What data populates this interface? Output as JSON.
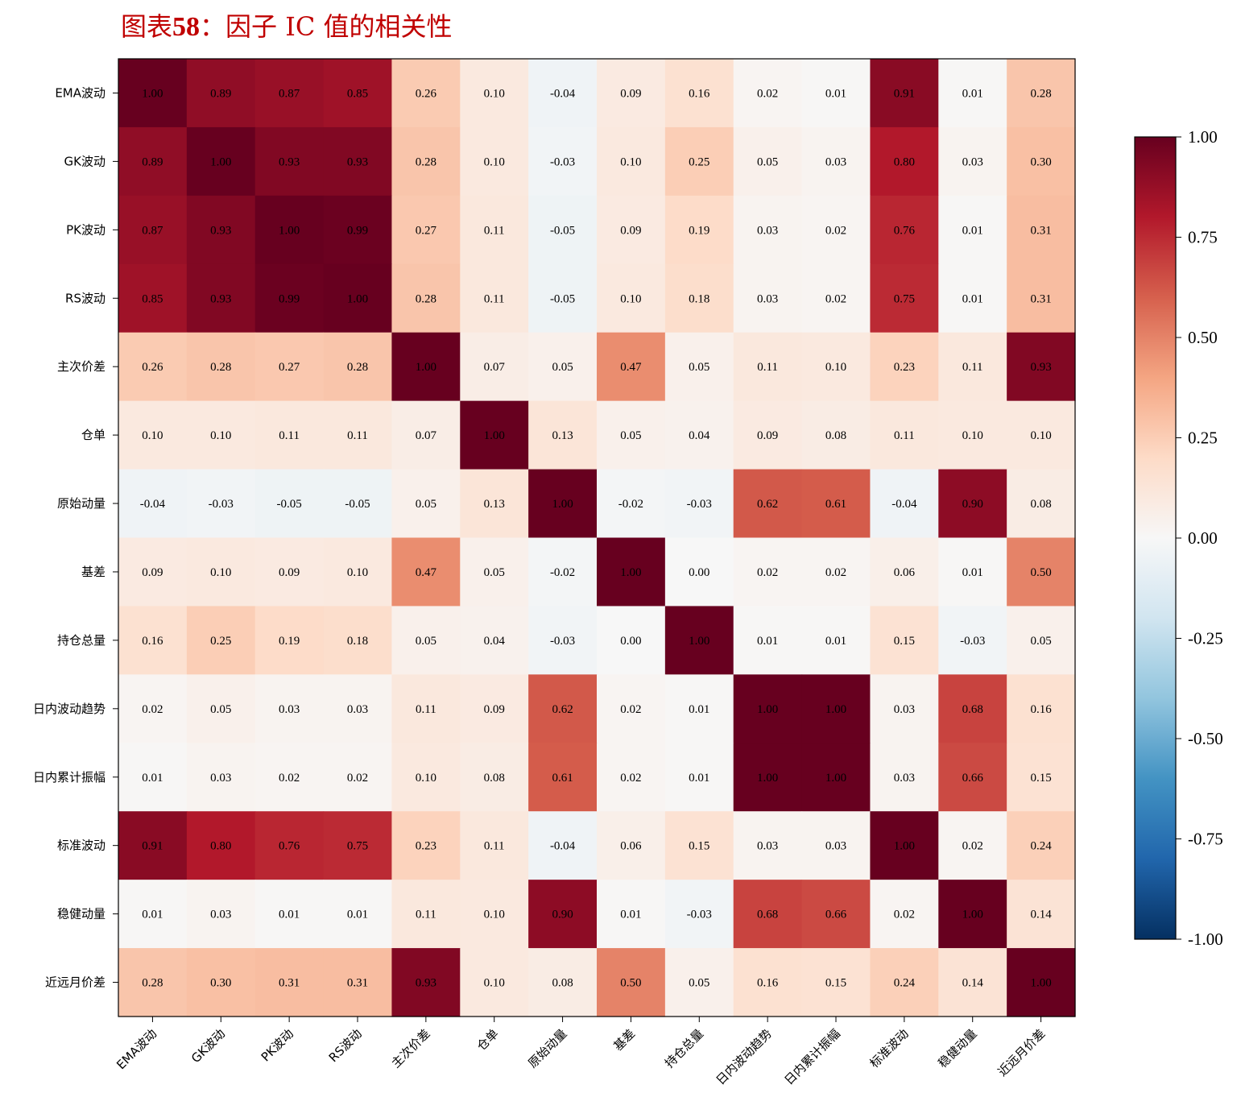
{
  "title": {
    "prefix": "图表",
    "number": "58",
    "suffix": "：因子 IC 值的相关性"
  },
  "chart_data": {
    "type": "heatmap",
    "title": "图表58：因子 IC 值的相关性",
    "colormap": "RdBu_r",
    "vmin": -1,
    "vmax": 1,
    "colorbar_ticks": [
      "1.00",
      "0.75",
      "0.50",
      "0.25",
      "0.00",
      "-0.25",
      "-0.50",
      "-0.75",
      "-1.00"
    ],
    "colorbar_values": [
      1.0,
      0.75,
      0.5,
      0.25,
      0.0,
      -0.25,
      -0.5,
      -0.75,
      -1.0
    ],
    "labels": [
      "EMA波动",
      "GK波动",
      "PK波动",
      "RS波动",
      "主次价差",
      "仓单",
      "原始动量",
      "基差",
      "持仓总量",
      "日内波动趋势",
      "日内累计振幅",
      "标准波动",
      "稳健动量",
      "近远月价差"
    ],
    "matrix": [
      [
        1.0,
        0.89,
        0.87,
        0.85,
        0.26,
        0.1,
        -0.04,
        0.09,
        0.16,
        0.02,
        0.01,
        0.91,
        0.01,
        0.28
      ],
      [
        0.89,
        1.0,
        0.93,
        0.93,
        0.28,
        0.1,
        -0.03,
        0.1,
        0.25,
        0.05,
        0.03,
        0.8,
        0.03,
        0.3
      ],
      [
        0.87,
        0.93,
        1.0,
        0.99,
        0.27,
        0.11,
        -0.05,
        0.09,
        0.19,
        0.03,
        0.02,
        0.76,
        0.01,
        0.31
      ],
      [
        0.85,
        0.93,
        0.99,
        1.0,
        0.28,
        0.11,
        -0.05,
        0.1,
        0.18,
        0.03,
        0.02,
        0.75,
        0.01,
        0.31
      ],
      [
        0.26,
        0.28,
        0.27,
        0.28,
        1.0,
        0.07,
        0.05,
        0.47,
        0.05,
        0.11,
        0.1,
        0.23,
        0.11,
        0.93
      ],
      [
        0.1,
        0.1,
        0.11,
        0.11,
        0.07,
        1.0,
        0.13,
        0.05,
        0.04,
        0.09,
        0.08,
        0.11,
        0.1,
        0.1
      ],
      [
        -0.04,
        -0.03,
        -0.05,
        -0.05,
        0.05,
        0.13,
        1.0,
        -0.02,
        -0.03,
        0.62,
        0.61,
        -0.04,
        0.9,
        0.08
      ],
      [
        0.09,
        0.1,
        0.09,
        0.1,
        0.47,
        0.05,
        -0.02,
        1.0,
        0.0,
        0.02,
        0.02,
        0.06,
        0.01,
        0.5
      ],
      [
        0.16,
        0.25,
        0.19,
        0.18,
        0.05,
        0.04,
        -0.03,
        0.0,
        1.0,
        0.01,
        0.01,
        0.15,
        -0.03,
        0.05
      ],
      [
        0.02,
        0.05,
        0.03,
        0.03,
        0.11,
        0.09,
        0.62,
        0.02,
        0.01,
        1.0,
        1.0,
        0.03,
        0.68,
        0.16
      ],
      [
        0.01,
        0.03,
        0.02,
        0.02,
        0.1,
        0.08,
        0.61,
        0.02,
        0.01,
        1.0,
        1.0,
        0.03,
        0.66,
        0.15
      ],
      [
        0.91,
        0.8,
        0.76,
        0.75,
        0.23,
        0.11,
        -0.04,
        0.06,
        0.15,
        0.03,
        0.03,
        1.0,
        0.02,
        0.24
      ],
      [
        0.01,
        0.03,
        0.01,
        0.01,
        0.11,
        0.1,
        0.9,
        0.01,
        -0.03,
        0.68,
        0.66,
        0.02,
        1.0,
        0.14
      ],
      [
        0.28,
        0.3,
        0.31,
        0.31,
        0.93,
        0.1,
        0.08,
        0.5,
        0.05,
        0.16,
        0.15,
        0.24,
        0.14,
        1.0
      ]
    ]
  }
}
